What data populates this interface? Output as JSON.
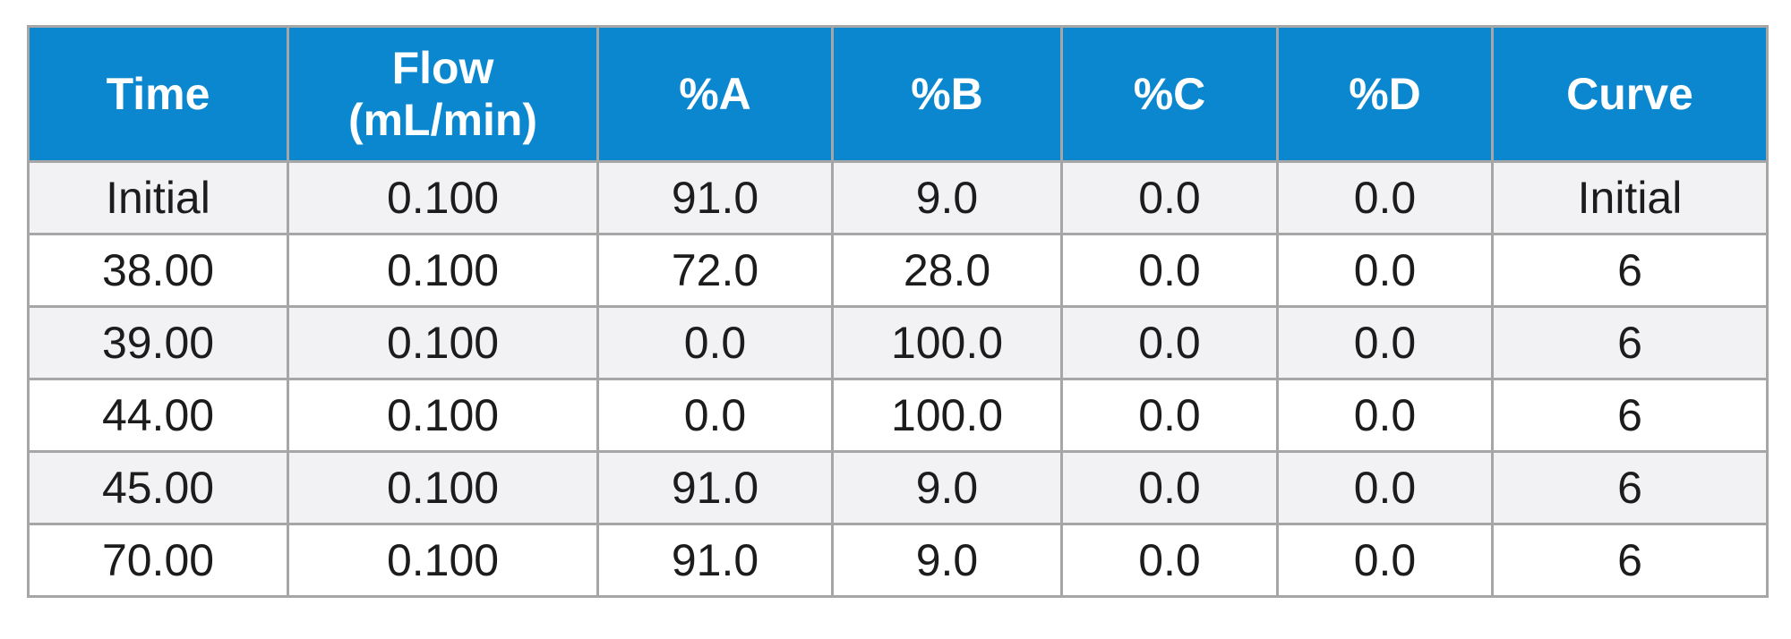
{
  "table": {
    "columns": [
      {
        "label": "Time"
      },
      {
        "label_line1": "Flow",
        "label_line2": "(mL/min)"
      },
      {
        "label": "%A"
      },
      {
        "label": "%B"
      },
      {
        "label": "%C"
      },
      {
        "label": "%D"
      },
      {
        "label": "Curve"
      }
    ],
    "rows": [
      [
        "Initial",
        "0.100",
        "91.0",
        "9.0",
        "0.0",
        "0.0",
        "Initial"
      ],
      [
        "38.00",
        "0.100",
        "72.0",
        "28.0",
        "0.0",
        "0.0",
        "6"
      ],
      [
        "39.00",
        "0.100",
        "0.0",
        "100.0",
        "0.0",
        "0.0",
        "6"
      ],
      [
        "44.00",
        "0.100",
        "0.0",
        "100.0",
        "0.0",
        "0.0",
        "6"
      ],
      [
        "45.00",
        "0.100",
        "91.0",
        "9.0",
        "0.0",
        "0.0",
        "6"
      ],
      [
        "70.00",
        "0.100",
        "91.0",
        "9.0",
        "0.0",
        "0.0",
        "6"
      ]
    ]
  },
  "colors": {
    "header_background": "#0a87cf",
    "header_text": "#ffffff",
    "striped_row": "#f2f2f4",
    "plain_row": "#ffffff",
    "grid_line": "#a6a6a6",
    "cell_text": "#1c1c1c"
  }
}
